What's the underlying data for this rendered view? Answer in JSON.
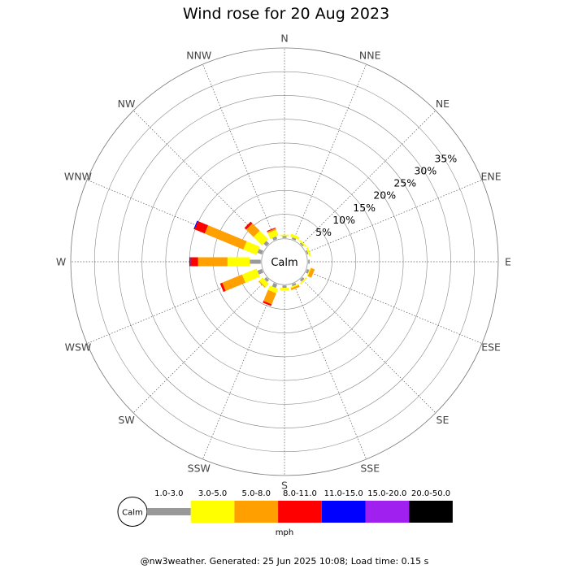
{
  "chart_data": {
    "type": "wind-rose",
    "title": "Wind rose for 20 Aug 2023",
    "directions": [
      "N",
      "NNE",
      "NE",
      "ENE",
      "E",
      "ESE",
      "SE",
      "SSE",
      "S",
      "SSW",
      "SW",
      "WSW",
      "W",
      "WNW",
      "NW",
      "NNW"
    ],
    "ring_labels": [
      "5%",
      "10%",
      "15%",
      "20%",
      "25%",
      "30%",
      "35%"
    ],
    "ring_values": [
      5,
      10,
      15,
      20,
      25,
      30,
      35
    ],
    "calm_label": "Calm",
    "radial_max": 40,
    "calm_offset": 5,
    "unit": "mph",
    "speed_bins": [
      {
        "label": "1.0-3.0",
        "color": "#999999"
      },
      {
        "label": "3.0-5.0",
        "color": "#ffff00"
      },
      {
        "label": "5.0-8.0",
        "color": "#ff9f00"
      },
      {
        "label": "8.0-11.0",
        "color": "#ff0000"
      },
      {
        "label": "11.0-15.0",
        "color": "#0000ff"
      },
      {
        "label": "15.0-20.0",
        "color": "#a020f0"
      },
      {
        "label": "20.0-50.0",
        "color": "#000000"
      }
    ],
    "frequencies": {
      "N": [
        0.4,
        0.3,
        0,
        0,
        0,
        0,
        0
      ],
      "NNE": [
        0.4,
        0.6,
        0,
        0,
        0,
        0,
        0
      ],
      "NE": [
        0.3,
        0.3,
        0,
        0,
        0,
        0,
        0
      ],
      "ENE": [
        0.3,
        0.4,
        0,
        0,
        0,
        0,
        0
      ],
      "E": [
        0.3,
        0,
        0,
        0,
        0,
        0,
        0
      ],
      "ESE": [
        0.5,
        0.2,
        0.8,
        0,
        0,
        0,
        0
      ],
      "SE": [
        0.5,
        0.3,
        0,
        0,
        0,
        0,
        0
      ],
      "SSE": [
        0.4,
        0.3,
        0.4,
        0,
        0,
        0,
        0
      ],
      "S": [
        0.5,
        0.5,
        0,
        0,
        0,
        0,
        0
      ],
      "SSW": [
        0.8,
        1.0,
        2.5,
        0.4,
        0,
        0,
        0
      ],
      "SW": [
        0.6,
        1.0,
        0.2,
        0,
        0,
        0,
        0
      ],
      "WSW": [
        1.0,
        3.3,
        4.5,
        0.5,
        0,
        0,
        0
      ],
      "W": [
        2.3,
        4.7,
        6.2,
        1.6,
        0.2,
        0,
        0
      ],
      "WNW": [
        1.0,
        3.0,
        8.8,
        2.3,
        0.2,
        0,
        0
      ],
      "NW": [
        0.8,
        2.5,
        2.2,
        0.5,
        0,
        0,
        0
      ],
      "NNW": [
        0.6,
        1.3,
        0.3,
        0.2,
        0,
        0,
        0
      ]
    },
    "grid": true
  },
  "footer": "@nw3weather. Generated: 25 Jun 2025 10:08; Load time: 0.15 s"
}
